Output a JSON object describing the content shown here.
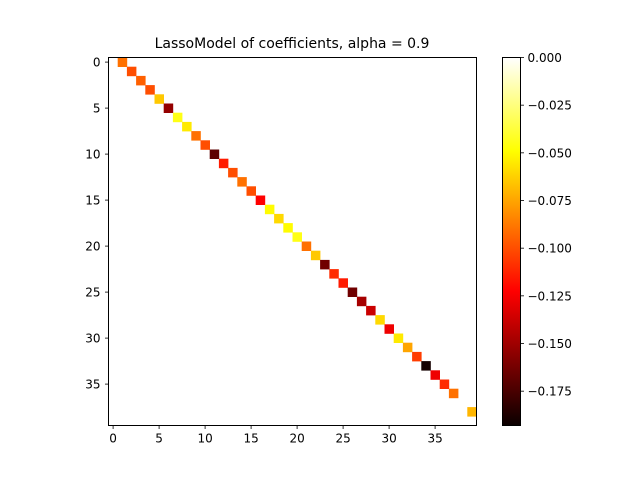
{
  "chart_data": {
    "type": "heatmap",
    "title": "LassoModel of coefficients, alpha = 0.9",
    "matrix_size": 40,
    "xlim": [
      -0.5,
      39.5
    ],
    "ylim": [
      39.5,
      -0.5
    ],
    "x_ticks": [
      0,
      5,
      10,
      15,
      20,
      25,
      30,
      35
    ],
    "y_ticks": [
      0,
      5,
      10,
      15,
      20,
      25,
      30,
      35
    ],
    "colormap": "hot",
    "colorbar": {
      "vmin": -0.193,
      "vmax": 0.0,
      "ticks": [
        0.0,
        -0.025,
        -0.05,
        -0.075,
        -0.1,
        -0.125,
        -0.15,
        -0.175
      ],
      "tick_labels": [
        "0.000",
        "−0.025",
        "−0.050",
        "−0.075",
        "−0.100",
        "−0.125",
        "−0.150",
        "−0.175"
      ]
    },
    "background_value": 0.0,
    "cells": [
      {
        "row": 0,
        "col": 1,
        "value": -0.09
      },
      {
        "row": 1,
        "col": 2,
        "value": -0.1
      },
      {
        "row": 2,
        "col": 3,
        "value": -0.095
      },
      {
        "row": 3,
        "col": 4,
        "value": -0.1
      },
      {
        "row": 4,
        "col": 5,
        "value": -0.065
      },
      {
        "row": 5,
        "col": 6,
        "value": -0.155
      },
      {
        "row": 6,
        "col": 7,
        "value": -0.045
      },
      {
        "row": 7,
        "col": 8,
        "value": -0.055
      },
      {
        "row": 8,
        "col": 9,
        "value": -0.09
      },
      {
        "row": 9,
        "col": 10,
        "value": -0.1
      },
      {
        "row": 10,
        "col": 11,
        "value": -0.17
      },
      {
        "row": 11,
        "col": 12,
        "value": -0.115
      },
      {
        "row": 12,
        "col": 13,
        "value": -0.1
      },
      {
        "row": 13,
        "col": 14,
        "value": -0.09
      },
      {
        "row": 14,
        "col": 15,
        "value": -0.1
      },
      {
        "row": 15,
        "col": 16,
        "value": -0.125
      },
      {
        "row": 16,
        "col": 17,
        "value": -0.05
      },
      {
        "row": 17,
        "col": 18,
        "value": -0.06
      },
      {
        "row": 18,
        "col": 19,
        "value": -0.05
      },
      {
        "row": 19,
        "col": 20,
        "value": -0.045
      },
      {
        "row": 20,
        "col": 21,
        "value": -0.09
      },
      {
        "row": 21,
        "col": 22,
        "value": -0.065
      },
      {
        "row": 22,
        "col": 23,
        "value": -0.165
      },
      {
        "row": 23,
        "col": 24,
        "value": -0.11
      },
      {
        "row": 24,
        "col": 25,
        "value": -0.115
      },
      {
        "row": 25,
        "col": 26,
        "value": -0.165
      },
      {
        "row": 26,
        "col": 27,
        "value": -0.15
      },
      {
        "row": 27,
        "col": 28,
        "value": -0.14
      },
      {
        "row": 28,
        "col": 29,
        "value": -0.06
      },
      {
        "row": 29,
        "col": 30,
        "value": -0.13
      },
      {
        "row": 30,
        "col": 31,
        "value": -0.055
      },
      {
        "row": 31,
        "col": 32,
        "value": -0.075
      },
      {
        "row": 32,
        "col": 33,
        "value": -0.105
      },
      {
        "row": 33,
        "col": 34,
        "value": -0.19
      },
      {
        "row": 34,
        "col": 35,
        "value": -0.13
      },
      {
        "row": 35,
        "col": 36,
        "value": -0.11
      },
      {
        "row": 36,
        "col": 37,
        "value": -0.09
      },
      {
        "row": 38,
        "col": 39,
        "value": -0.07
      }
    ]
  }
}
